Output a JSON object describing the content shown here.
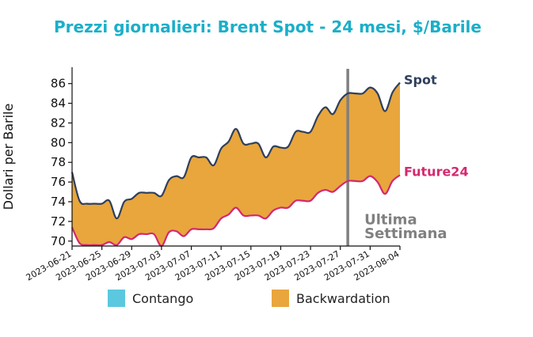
{
  "chart_data": {
    "type": "area",
    "title": "Prezzi giornalieri: Brent Spot - 24 mesi, $/Barile",
    "ylabel": "Dollari per Barile",
    "xlabel": "",
    "ylim": [
      69.5,
      87.5
    ],
    "yticks": [
      70,
      72,
      74,
      76,
      78,
      80,
      82,
      84,
      86
    ],
    "xlim": [
      "2023-06-21",
      "2023-08-04"
    ],
    "xticks": [
      "2023-06-21",
      "2023-06-25",
      "2023-06-29",
      "2023-07-03",
      "2023-07-07",
      "2023-07-11",
      "2023-07-15",
      "2023-07-19",
      "2023-07-23",
      "2023-07-27",
      "2023-07-31",
      "2023-08-04"
    ],
    "grid": false,
    "colors": {
      "spot": "#2e3f5c",
      "future": "#d4286f",
      "backwardation": "#e8a63c",
      "contango": "#5bc8df",
      "title": "#1aafc9",
      "annotation": "#808080"
    },
    "series": [
      {
        "name": "Spot",
        "x": [
          "2023-06-21",
          "2023-06-22",
          "2023-06-23",
          "2023-06-24",
          "2023-06-25",
          "2023-06-26",
          "2023-06-27",
          "2023-06-28",
          "2023-06-29",
          "2023-06-30",
          "2023-07-01",
          "2023-07-02",
          "2023-07-03",
          "2023-07-04",
          "2023-07-05",
          "2023-07-06",
          "2023-07-07",
          "2023-07-08",
          "2023-07-09",
          "2023-07-10",
          "2023-07-11",
          "2023-07-12",
          "2023-07-13",
          "2023-07-14",
          "2023-07-15",
          "2023-07-16",
          "2023-07-17",
          "2023-07-18",
          "2023-07-19",
          "2023-07-20",
          "2023-07-21",
          "2023-07-22",
          "2023-07-23",
          "2023-07-24",
          "2023-07-25",
          "2023-07-26",
          "2023-07-27",
          "2023-07-28",
          "2023-07-29",
          "2023-07-30",
          "2023-07-31",
          "2023-08-01",
          "2023-08-02",
          "2023-08-03",
          "2023-08-04"
        ],
        "values": [
          77.0,
          74.1,
          73.8,
          73.8,
          73.8,
          74.1,
          72.3,
          74.0,
          74.3,
          74.9,
          74.9,
          74.9,
          74.6,
          76.2,
          76.6,
          76.5,
          78.5,
          78.5,
          78.5,
          77.7,
          79.4,
          80.1,
          81.4,
          79.9,
          79.9,
          79.9,
          78.5,
          79.6,
          79.5,
          79.6,
          81.1,
          81.1,
          81.1,
          82.7,
          83.6,
          82.9,
          84.3,
          85.0,
          85.0,
          85.0,
          85.6,
          85.0,
          83.2,
          85.1,
          86.1
        ]
      },
      {
        "name": "Future24",
        "x": [
          "2023-06-21",
          "2023-06-22",
          "2023-06-23",
          "2023-06-24",
          "2023-06-25",
          "2023-06-26",
          "2023-06-27",
          "2023-06-28",
          "2023-06-29",
          "2023-06-30",
          "2023-07-01",
          "2023-07-02",
          "2023-07-03",
          "2023-07-04",
          "2023-07-05",
          "2023-07-06",
          "2023-07-07",
          "2023-07-08",
          "2023-07-09",
          "2023-07-10",
          "2023-07-11",
          "2023-07-12",
          "2023-07-13",
          "2023-07-14",
          "2023-07-15",
          "2023-07-16",
          "2023-07-17",
          "2023-07-18",
          "2023-07-19",
          "2023-07-20",
          "2023-07-21",
          "2023-07-22",
          "2023-07-23",
          "2023-07-24",
          "2023-07-25",
          "2023-07-26",
          "2023-07-27",
          "2023-07-28",
          "2023-07-29",
          "2023-07-30",
          "2023-07-31",
          "2023-08-01",
          "2023-08-02",
          "2023-08-03",
          "2023-08-04"
        ],
        "values": [
          71.4,
          69.8,
          69.6,
          69.6,
          69.6,
          69.9,
          69.6,
          70.4,
          70.2,
          70.7,
          70.7,
          70.7,
          69.5,
          70.9,
          71.0,
          70.5,
          71.2,
          71.2,
          71.2,
          71.3,
          72.3,
          72.7,
          73.4,
          72.6,
          72.6,
          72.6,
          72.3,
          73.1,
          73.4,
          73.4,
          74.1,
          74.1,
          74.1,
          74.9,
          75.2,
          75.0,
          75.6,
          76.1,
          76.1,
          76.1,
          76.6,
          76.0,
          74.8,
          76.1,
          76.7
        ]
      }
    ],
    "vline": {
      "x": "2023-07-28",
      "label_line1": "Ultima",
      "label_line2": "Settimana"
    },
    "legend": {
      "placement": "bottom",
      "items": [
        {
          "label": "Contango",
          "color": "#5bc8df"
        },
        {
          "label": "Backwardation",
          "color": "#e8a63c"
        }
      ]
    }
  }
}
